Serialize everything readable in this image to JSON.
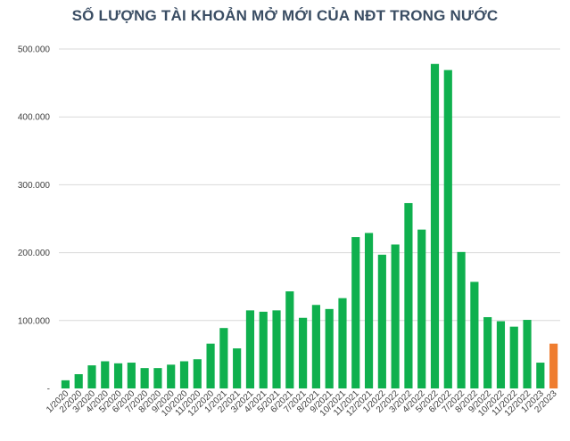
{
  "chart_data": {
    "type": "bar",
    "title": "SỐ LƯỢNG TÀI KHOẢN MỞ MỚI CỦA NĐT TRONG NƯỚC",
    "xlabel": "",
    "ylabel": "",
    "ylim": [
      0,
      500000
    ],
    "yticks": [
      0,
      100000,
      200000,
      300000,
      400000,
      500000
    ],
    "ytick_labels": [
      "-",
      "100.000",
      "200.000",
      "300.000",
      "400.000",
      "500.000"
    ],
    "grid": true,
    "legend": "none",
    "colors": {
      "bar": "#0fb04e",
      "highlight": "#ef7d30",
      "grid": "#d9d9d9",
      "title": "#3a4d63"
    },
    "categories": [
      "1/2020",
      "2/2020",
      "3/2020",
      "4/2020",
      "5/2020",
      "6/2020",
      "7/2020",
      "8/2020",
      "9/2020",
      "10/2020",
      "11/2020",
      "12/2020",
      "1/2021",
      "2/2021",
      "3/2021",
      "4/2021",
      "5/2021",
      "6/2021",
      "7/2021",
      "8/2021",
      "9/2021",
      "10/2021",
      "11/2021",
      "12/2021",
      "1/2022",
      "2/2022",
      "3/2022",
      "4/2022",
      "5/2022",
      "6/2022",
      "7/2022",
      "8/2022",
      "9/2022",
      "10/2022",
      "11/2022",
      "12/2022",
      "1/2023",
      "2/2023"
    ],
    "values": [
      12000,
      21000,
      34000,
      40000,
      37000,
      38000,
      30000,
      30000,
      35000,
      40000,
      43000,
      66000,
      89000,
      59000,
      115000,
      113000,
      115000,
      143000,
      104000,
      123000,
      117000,
      133000,
      223000,
      229000,
      197000,
      212000,
      273000,
      234000,
      478000,
      469000,
      201000,
      157000,
      105000,
      99000,
      91000,
      101000,
      38000,
      66000
    ],
    "highlight_index": 37
  }
}
